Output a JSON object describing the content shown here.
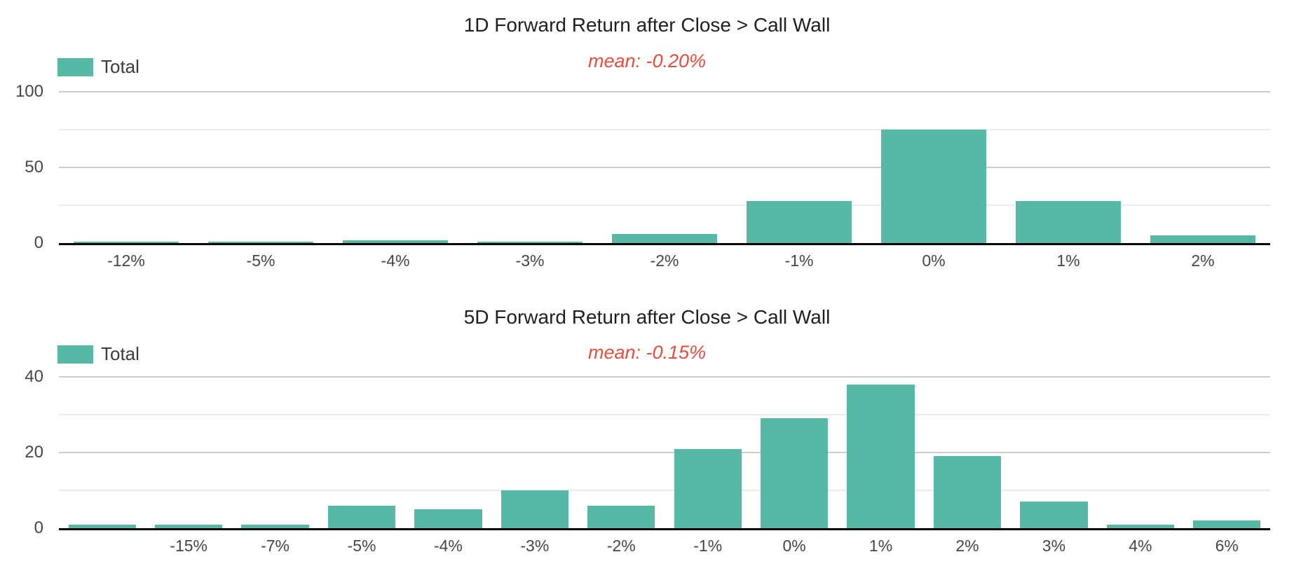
{
  "chart_data": [
    {
      "type": "bar",
      "title": "1D Forward Return after Close > Call Wall",
      "annotation": "mean: -0.20%",
      "legend_label": "Total",
      "legend_position": "top-left",
      "categories": [
        "-12%",
        "-5%",
        "-4%",
        "-3%",
        "-2%",
        "-1%",
        "0%",
        "1%",
        "2%"
      ],
      "values": [
        1,
        1,
        2,
        1,
        6,
        28,
        75,
        28,
        5
      ],
      "xlabel": "",
      "ylabel": "",
      "ylim": [
        0,
        100
      ],
      "ytick_values": [
        0,
        50,
        100
      ],
      "ytick_labels": [
        "0",
        "50",
        "100"
      ],
      "minor_gridline_values": [
        25,
        75
      ],
      "grid": true
    },
    {
      "type": "bar",
      "title": "5D Forward Return after Close > Call Wall",
      "annotation": "mean: -0.15%",
      "legend_label": "Total",
      "legend_position": "top-left",
      "categories": [
        "",
        "-15%",
        "-7%",
        "-5%",
        "-4%",
        "-3%",
        "-2%",
        "-1%",
        "0%",
        "1%",
        "2%",
        "3%",
        "4%",
        "6%"
      ],
      "values": [
        1,
        1,
        1,
        6,
        5,
        10,
        6,
        21,
        29,
        38,
        19,
        7,
        1,
        2
      ],
      "xlabel": "",
      "ylabel": "",
      "ylim": [
        0,
        40
      ],
      "ytick_values": [
        0,
        20,
        40
      ],
      "ytick_labels": [
        "0",
        "20",
        "40"
      ],
      "minor_gridline_values": [
        10,
        30
      ],
      "grid": true
    }
  ],
  "colors": {
    "bar_fill": "#58b8a6",
    "annotation_text": "#e74c3c",
    "title_text": "#1f1f1f",
    "axis_tick_text": "#464646",
    "legend_text": "#3c3c3c",
    "major_gridline": "#cccccc",
    "minor_gridline": "#ebebeb",
    "axis_line": "#000000",
    "background": "#ffffff"
  }
}
